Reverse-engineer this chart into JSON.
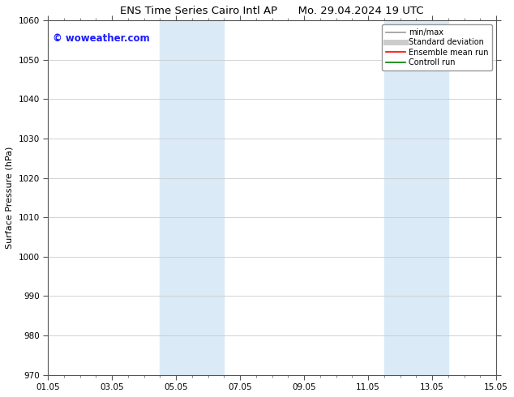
{
  "title_left": "ENS Time Series Cairo Intl AP",
  "title_right": "Mo. 29.04.2024 19 UTC",
  "ylabel": "Surface Pressure (hPa)",
  "ylim": [
    970,
    1060
  ],
  "yticks": [
    970,
    980,
    990,
    1000,
    1010,
    1020,
    1030,
    1040,
    1050,
    1060
  ],
  "xlim": [
    0,
    14
  ],
  "xticks": [
    0,
    2,
    4,
    6,
    8,
    10,
    12,
    14
  ],
  "xtick_labels": [
    "01.05",
    "03.05",
    "05.05",
    "07.05",
    "09.05",
    "11.05",
    "13.05",
    "15.05"
  ],
  "shaded_bands": [
    {
      "x_start": 3.5,
      "x_end": 5.5,
      "color": "#daeaf7"
    },
    {
      "x_start": 10.5,
      "x_end": 12.5,
      "color": "#daeaf7"
    }
  ],
  "watermark_text": "© woweather.com",
  "watermark_color": "#1a1aff",
  "legend_entries": [
    {
      "label": "min/max",
      "color": "#999999",
      "lw": 1.2
    },
    {
      "label": "Standard deviation",
      "color": "#cccccc",
      "lw": 5
    },
    {
      "label": "Ensemble mean run",
      "color": "#ff0000",
      "lw": 1.2
    },
    {
      "label": "Controll run",
      "color": "#008000",
      "lw": 1.2
    }
  ],
  "bg_color": "#ffffff",
  "grid_color": "#cccccc",
  "title_fontsize": 9.5,
  "tick_fontsize": 7.5,
  "ylabel_fontsize": 8,
  "watermark_fontsize": 8.5
}
